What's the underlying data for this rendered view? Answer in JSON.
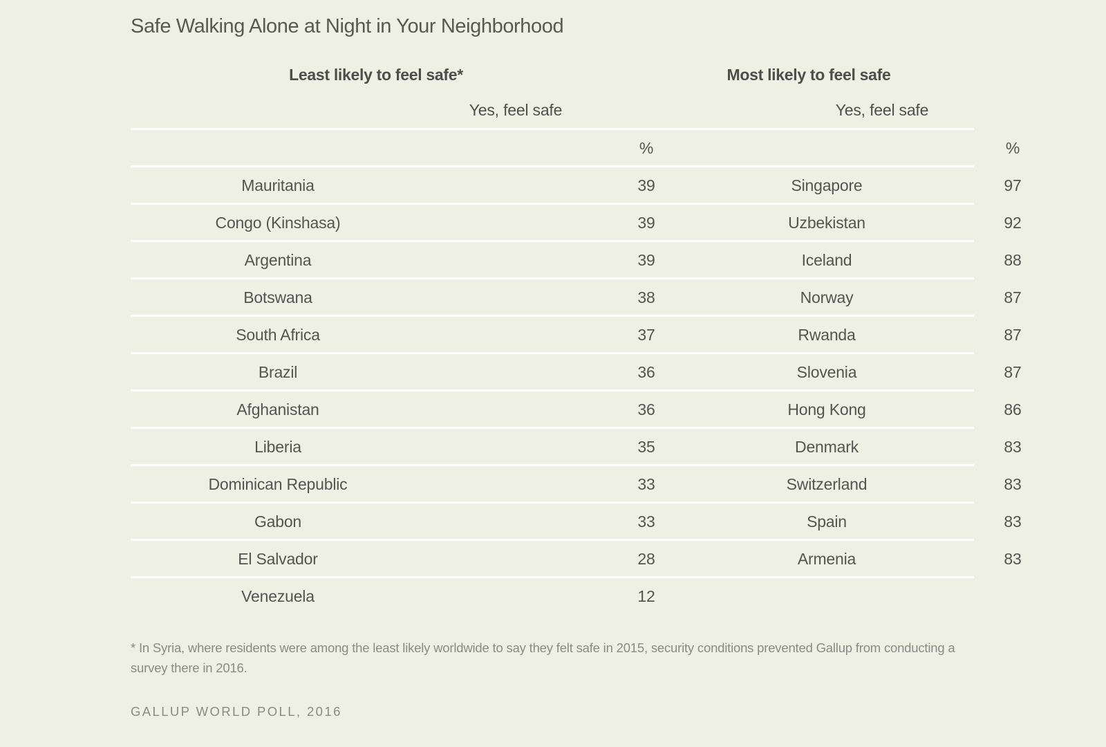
{
  "title": "Safe Walking Alone at Night in Your Neighborhood",
  "groups": {
    "least": {
      "heading": "Least likely to feel safe*",
      "column_label": "Yes, feel safe",
      "unit": "%"
    },
    "most": {
      "heading": "Most likely to feel safe",
      "column_label": "Yes, feel safe",
      "unit": "%"
    }
  },
  "rows": [
    {
      "least_country": "Mauritania",
      "least_value": "39",
      "most_country": "Singapore",
      "most_value": "97"
    },
    {
      "least_country": "Congo (Kinshasa)",
      "least_value": "39",
      "most_country": "Uzbekistan",
      "most_value": "92"
    },
    {
      "least_country": "Argentina",
      "least_value": "39",
      "most_country": "Iceland",
      "most_value": "88"
    },
    {
      "least_country": "Botswana",
      "least_value": "38",
      "most_country": "Norway",
      "most_value": "87"
    },
    {
      "least_country": "South Africa",
      "least_value": "37",
      "most_country": "Rwanda",
      "most_value": "87"
    },
    {
      "least_country": "Brazil",
      "least_value": "36",
      "most_country": "Slovenia",
      "most_value": "87"
    },
    {
      "least_country": "Afghanistan",
      "least_value": "36",
      "most_country": "Hong Kong",
      "most_value": "86"
    },
    {
      "least_country": "Liberia",
      "least_value": "35",
      "most_country": "Denmark",
      "most_value": "83"
    },
    {
      "least_country": "Dominican Republic",
      "least_value": "33",
      "most_country": "Switzerland",
      "most_value": "83"
    },
    {
      "least_country": "Gabon",
      "least_value": "33",
      "most_country": "Spain",
      "most_value": "83"
    },
    {
      "least_country": "El Salvador",
      "least_value": "28",
      "most_country": "Armenia",
      "most_value": "83"
    },
    {
      "least_country": "Venezuela",
      "least_value": "12",
      "most_country": "",
      "most_value": ""
    }
  ],
  "footnote": "* In Syria, where residents were among the least likely worldwide to say they felt safe in 2015, security conditions prevented Gallup from conducting a survey there in 2016.",
  "source": "GALLUP WORLD POLL, 2016",
  "colors": {
    "background": "#edf0e2",
    "divider": "#ffffff",
    "text": "#54554f",
    "muted_text": "#8a8b84"
  }
}
